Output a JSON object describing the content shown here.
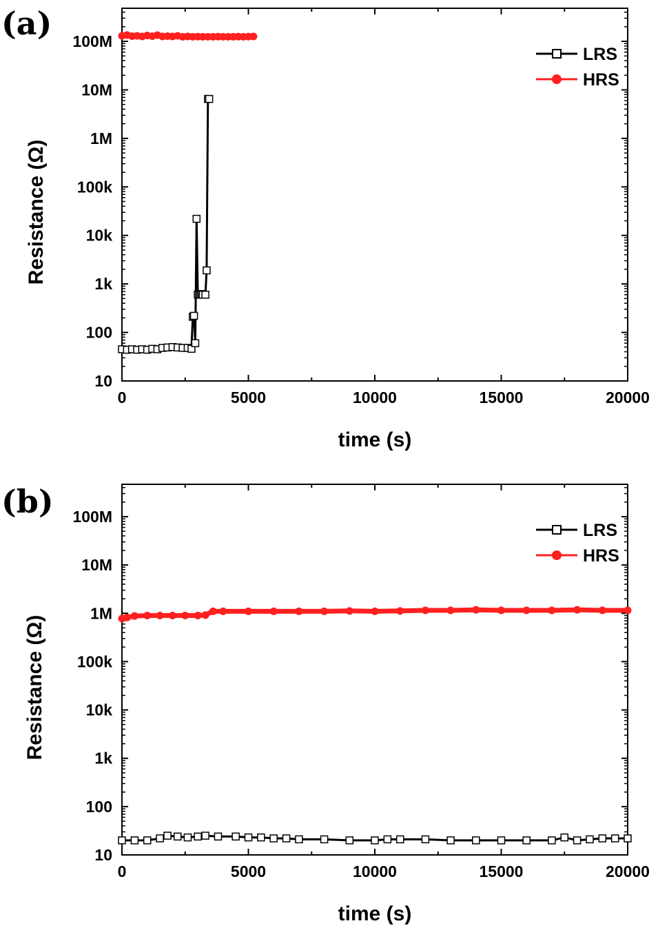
{
  "chart_data": [
    {
      "panel_label": "(a)",
      "type": "line",
      "xlabel": "time (s)",
      "ylabel": "Resistance (Ω)",
      "xlim": [
        0,
        20000
      ],
      "ylim": [
        10,
        400000000
      ],
      "yscale": "log",
      "xticks": [
        0,
        5000,
        10000,
        15000,
        20000
      ],
      "xtick_labels": [
        "0",
        "5000",
        "10000",
        "15000",
        "20000"
      ],
      "yticks": [
        10,
        100,
        1000,
        10000,
        100000,
        1000000,
        10000000,
        100000000
      ],
      "ytick_labels": [
        "10",
        "100",
        "1k",
        "10k",
        "100k",
        "1M",
        "10M",
        "100M"
      ],
      "legend_position": "top-right",
      "grid": false,
      "series": [
        {
          "name": "LRS",
          "color": "#000000",
          "marker": "open-square",
          "x": [
            0,
            200,
            400,
            600,
            800,
            1000,
            1200,
            1400,
            1600,
            1800,
            2000,
            2200,
            2400,
            2600,
            2750,
            2800,
            2850,
            2900,
            2950,
            3000,
            3050,
            3100,
            3150,
            3200,
            3300,
            3350,
            3400,
            3450
          ],
          "y": [
            45,
            44,
            45,
            44,
            45,
            44,
            46,
            45,
            48,
            49,
            50,
            49,
            48,
            48,
            46,
            210,
            220,
            60,
            22000,
            600,
            600,
            600,
            620,
            600,
            600,
            1900,
            6500000,
            6500000
          ]
        },
        {
          "name": "HRS",
          "color": "#ff2020",
          "marker": "filled-circle",
          "x": [
            0,
            200,
            400,
            600,
            800,
            1000,
            1200,
            1400,
            1600,
            1800,
            2000,
            2200,
            2400,
            2600,
            2800,
            3000,
            3200,
            3400,
            3600,
            3800,
            4000,
            4200,
            4400,
            4600,
            4800,
            5000,
            5200
          ],
          "y": [
            130000000,
            135000000,
            128000000,
            130000000,
            126000000,
            132000000,
            128000000,
            134000000,
            126000000,
            128000000,
            126000000,
            130000000,
            124000000,
            126000000,
            124000000,
            125000000,
            124000000,
            124000000,
            124000000,
            125000000,
            124000000,
            124000000,
            124000000,
            125000000,
            124000000,
            125000000,
            126000000
          ]
        }
      ]
    },
    {
      "panel_label": "(b)",
      "type": "line",
      "xlabel": "time (s)",
      "ylabel": "Resistance (Ω)",
      "xlim": [
        0,
        20000
      ],
      "ylim": [
        10,
        400000000
      ],
      "yscale": "log",
      "xticks": [
        0,
        5000,
        10000,
        15000,
        20000
      ],
      "xtick_labels": [
        "0",
        "5000",
        "10000",
        "15000",
        "20000"
      ],
      "yticks": [
        10,
        100,
        1000,
        10000,
        100000,
        1000000,
        10000000,
        100000000
      ],
      "ytick_labels": [
        "10",
        "100",
        "1k",
        "10k",
        "100k",
        "1M",
        "10M",
        "100M"
      ],
      "legend_position": "top-right",
      "grid": false,
      "series": [
        {
          "name": "LRS",
          "color": "#000000",
          "marker": "open-square",
          "x": [
            0,
            500,
            1000,
            1500,
            1800,
            2200,
            2600,
            3000,
            3300,
            3800,
            4500,
            5000,
            5500,
            6000,
            6500,
            7000,
            8000,
            9000,
            10000,
            10500,
            11000,
            12000,
            13000,
            14000,
            15000,
            16000,
            17000,
            17500,
            18000,
            18500,
            19000,
            19500,
            20000
          ],
          "y": [
            20,
            20,
            20,
            22,
            25,
            24,
            23,
            24,
            25,
            24,
            24,
            23,
            23,
            22,
            22,
            21,
            21,
            20,
            20,
            21,
            21,
            21,
            20,
            20,
            20,
            20,
            20,
            23,
            20,
            21,
            22,
            22,
            22
          ]
        },
        {
          "name": "HRS",
          "color": "#ff2020",
          "marker": "filled-circle",
          "x": [
            0,
            200,
            500,
            1000,
            1500,
            2000,
            2500,
            3000,
            3300,
            3600,
            4000,
            5000,
            6000,
            7000,
            8000,
            9000,
            10000,
            11000,
            12000,
            13000,
            14000,
            15000,
            16000,
            17000,
            18000,
            19000,
            20000
          ],
          "y": [
            780000,
            820000,
            880000,
            900000,
            900000,
            900000,
            900000,
            900000,
            920000,
            1100000,
            1100000,
            1100000,
            1100000,
            1100000,
            1100000,
            1120000,
            1100000,
            1120000,
            1150000,
            1150000,
            1180000,
            1150000,
            1150000,
            1150000,
            1180000,
            1150000,
            1150000
          ]
        }
      ]
    }
  ]
}
